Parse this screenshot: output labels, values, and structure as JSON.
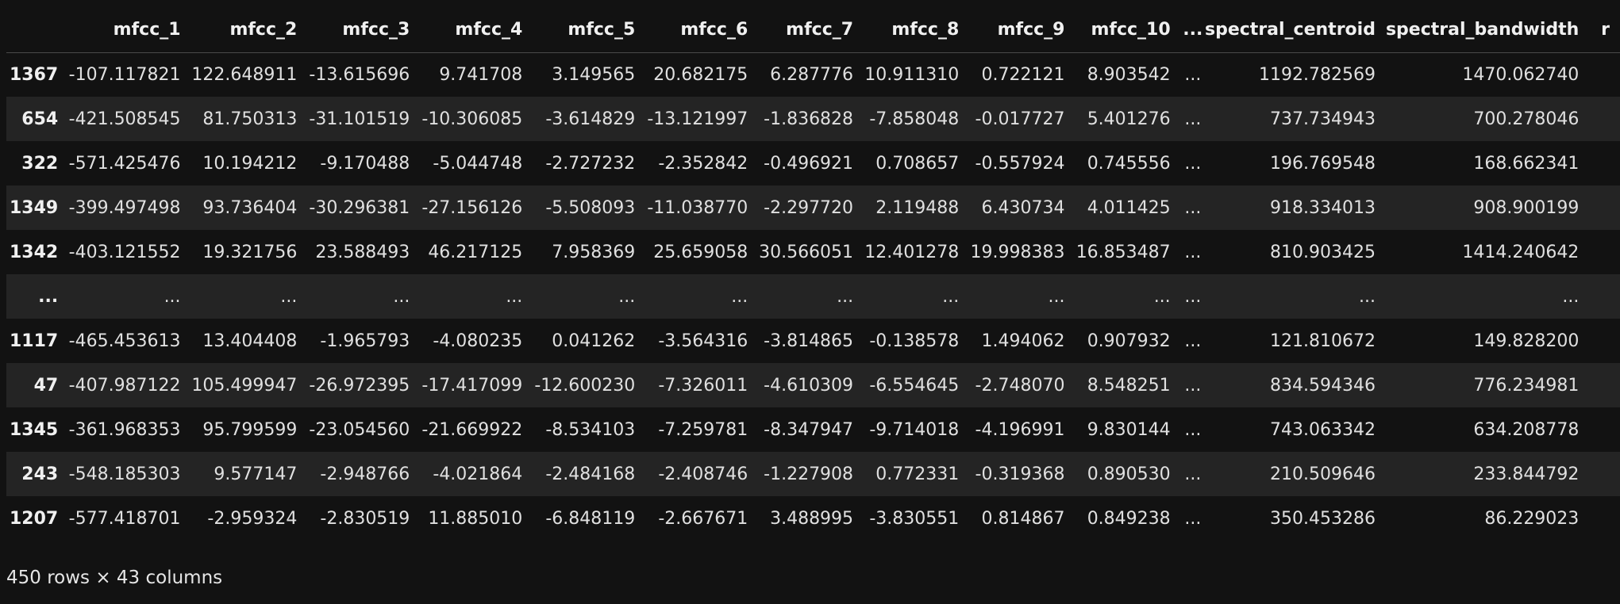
{
  "table": {
    "columns": [
      "",
      "mfcc_1",
      "mfcc_2",
      "mfcc_3",
      "mfcc_4",
      "mfcc_5",
      "mfcc_6",
      "mfcc_7",
      "mfcc_8",
      "mfcc_9",
      "mfcc_10",
      "...",
      "spectral_centroid",
      "spectral_bandwidth",
      "r"
    ],
    "rows": [
      [
        "1367",
        "-107.117821",
        "122.648911",
        "-13.615696",
        "9.741708",
        "3.149565",
        "20.682175",
        "6.287776",
        "10.911310",
        "0.722121",
        "8.903542",
        "...",
        "1192.782569",
        "1470.062740",
        ""
      ],
      [
        "654",
        "-421.508545",
        "81.750313",
        "-31.101519",
        "-10.306085",
        "-3.614829",
        "-13.121997",
        "-1.836828",
        "-7.858048",
        "-0.017727",
        "5.401276",
        "...",
        "737.734943",
        "700.278046",
        ""
      ],
      [
        "322",
        "-571.425476",
        "10.194212",
        "-9.170488",
        "-5.044748",
        "-2.727232",
        "-2.352842",
        "-0.496921",
        "0.708657",
        "-0.557924",
        "0.745556",
        "...",
        "196.769548",
        "168.662341",
        ""
      ],
      [
        "1349",
        "-399.497498",
        "93.736404",
        "-30.296381",
        "-27.156126",
        "-5.508093",
        "-11.038770",
        "-2.297720",
        "2.119488",
        "6.430734",
        "4.011425",
        "...",
        "918.334013",
        "908.900199",
        ""
      ],
      [
        "1342",
        "-403.121552",
        "19.321756",
        "23.588493",
        "46.217125",
        "7.958369",
        "25.659058",
        "30.566051",
        "12.401278",
        "19.998383",
        "16.853487",
        "...",
        "810.903425",
        "1414.240642",
        ""
      ],
      [
        "...",
        "...",
        "...",
        "...",
        "...",
        "...",
        "...",
        "...",
        "...",
        "...",
        "...",
        "...",
        "...",
        "...",
        ""
      ],
      [
        "1117",
        "-465.453613",
        "13.404408",
        "-1.965793",
        "-4.080235",
        "0.041262",
        "-3.564316",
        "-3.814865",
        "-0.138578",
        "1.494062",
        "0.907932",
        "...",
        "121.810672",
        "149.828200",
        ""
      ],
      [
        "47",
        "-407.987122",
        "105.499947",
        "-26.972395",
        "-17.417099",
        "-12.600230",
        "-7.326011",
        "-4.610309",
        "-6.554645",
        "-2.748070",
        "8.548251",
        "...",
        "834.594346",
        "776.234981",
        ""
      ],
      [
        "1345",
        "-361.968353",
        "95.799599",
        "-23.054560",
        "-21.669922",
        "-8.534103",
        "-7.259781",
        "-8.347947",
        "-9.714018",
        "-4.196991",
        "9.830144",
        "...",
        "743.063342",
        "634.208778",
        ""
      ],
      [
        "243",
        "-548.185303",
        "9.577147",
        "-2.948766",
        "-4.021864",
        "-2.484168",
        "-2.408746",
        "-1.227908",
        "0.772331",
        "-0.319368",
        "0.890530",
        "...",
        "210.509646",
        "233.844792",
        ""
      ],
      [
        "1207",
        "-577.418701",
        "-2.959324",
        "-2.830519",
        "11.885010",
        "-6.848119",
        "-2.667671",
        "3.488995",
        "-3.830551",
        "0.814867",
        "0.849238",
        "...",
        "350.453286",
        "86.229023",
        ""
      ]
    ]
  },
  "footer": {
    "shape_text": "450 rows × 43 columns"
  }
}
